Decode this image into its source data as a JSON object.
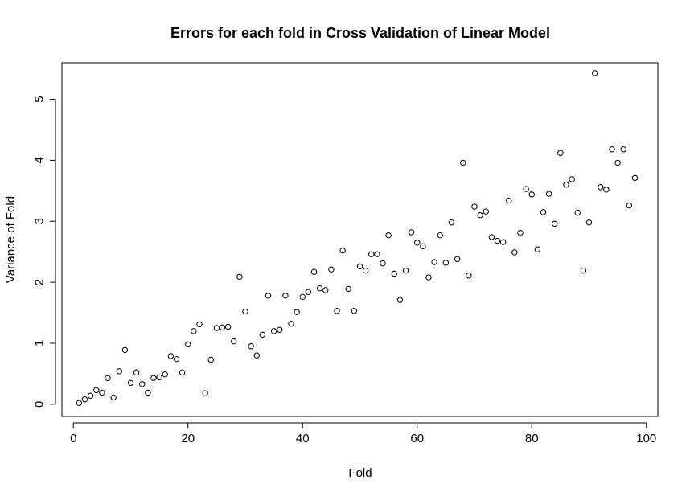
{
  "chart_data": {
    "type": "scatter",
    "title": "Errors for each fold in Cross Validation of Linear Model",
    "xlabel": "Fold",
    "ylabel": "Variance of Fold",
    "xlim": [
      -2,
      102
    ],
    "ylim": [
      -0.2,
      5.6
    ],
    "xticks": [
      0,
      20,
      40,
      60,
      80,
      100
    ],
    "yticks": [
      0,
      1,
      2,
      3,
      4,
      5
    ],
    "grid": false,
    "legend": "none",
    "point_style": "open-circle",
    "x": [
      1,
      2,
      3,
      4,
      5,
      6,
      7,
      8,
      9,
      10,
      11,
      12,
      13,
      14,
      15,
      16,
      17,
      18,
      19,
      20,
      21,
      22,
      23,
      24,
      25,
      26,
      27,
      28,
      29,
      30,
      31,
      32,
      33,
      34,
      35,
      36,
      37,
      38,
      39,
      40,
      41,
      42,
      43,
      44,
      45,
      46,
      47,
      48,
      49,
      50,
      51,
      52,
      53,
      54,
      55,
      56,
      57,
      58,
      59,
      60,
      61,
      62,
      63,
      64,
      65,
      66,
      67,
      68,
      69,
      70,
      71,
      72,
      73,
      74,
      75,
      76,
      77,
      78,
      79,
      80,
      81,
      82,
      83,
      84,
      85,
      86,
      87,
      88,
      89,
      90,
      91,
      92,
      93,
      94,
      95,
      96,
      97,
      98
    ],
    "y": [
      0.02,
      0.08,
      0.14,
      0.23,
      0.19,
      0.43,
      0.11,
      0.54,
      0.89,
      0.35,
      0.52,
      0.33,
      0.19,
      0.43,
      0.44,
      0.49,
      0.79,
      0.74,
      0.52,
      0.98,
      1.2,
      1.31,
      0.18,
      0.73,
      1.25,
      1.26,
      1.27,
      1.03,
      2.09,
      1.52,
      0.95,
      0.8,
      1.14,
      1.78,
      1.2,
      1.22,
      1.78,
      1.32,
      1.51,
      1.76,
      1.84,
      2.17,
      1.9,
      1.87,
      2.21,
      1.53,
      2.52,
      1.89,
      1.53,
      2.26,
      2.19,
      2.46,
      2.46,
      2.31,
      2.77,
      2.14,
      1.71,
      2.19,
      2.82,
      2.65,
      2.59,
      2.08,
      2.33,
      2.77,
      2.32,
      2.98,
      2.38,
      3.96,
      2.11,
      3.24,
      3.1,
      3.16,
      2.74,
      2.68,
      2.66,
      3.34,
      2.49,
      2.81,
      3.53,
      3.44,
      2.54,
      3.15,
      3.45,
      2.96,
      4.12,
      3.6,
      3.69,
      3.14,
      2.19,
      2.98,
      5.43,
      3.56,
      3.52,
      4.18,
      3.96,
      4.18,
      3.26,
      3.71
    ]
  }
}
